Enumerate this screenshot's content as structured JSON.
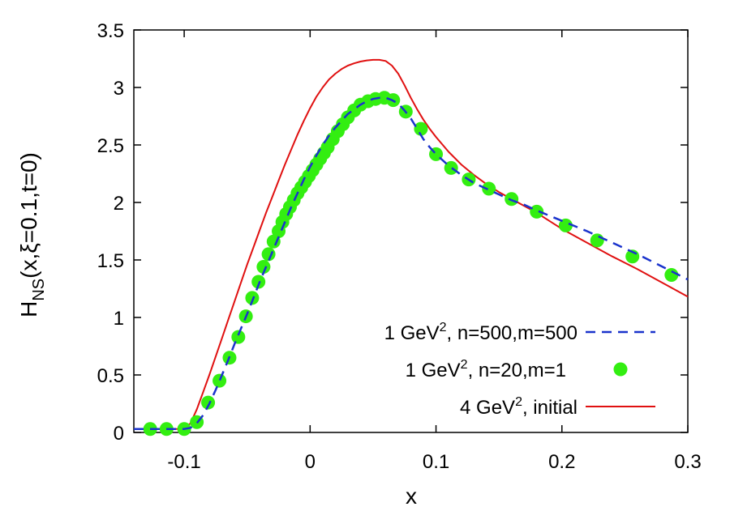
{
  "chart_data": {
    "type": "line",
    "xlabel": "x",
    "ylabel": {
      "base": "H",
      "sub": "NS",
      "rest": "(x,ξ=0.1,t=0)"
    },
    "xlim": [
      -0.14,
      0.3
    ],
    "ylim": [
      0,
      3.5
    ],
    "x_ticks": [
      -0.1,
      0,
      0.1,
      0.2,
      0.3
    ],
    "x_tick_labels": [
      "-0.1",
      "0",
      "0.1",
      "0.2",
      "0.3"
    ],
    "y_ticks": [
      0,
      0.5,
      1,
      1.5,
      2,
      2.5,
      3,
      3.5
    ],
    "y_tick_labels": [
      "0",
      "0.5",
      "1",
      "1.5",
      "2",
      "2.5",
      "3",
      "3.5"
    ],
    "grid": false,
    "legend_position": "bottom-right",
    "series": [
      {
        "name": "1 GeV, n=500,m=500",
        "legend": {
          "pre": "1 GeV",
          "sup": "2",
          "post": ", n=500,m=500"
        },
        "style": "dashed",
        "color": "#1a33cc",
        "x": [
          -0.14,
          -0.1,
          -0.095,
          -0.09,
          -0.085,
          -0.08,
          -0.075,
          -0.07,
          -0.065,
          -0.06,
          -0.055,
          -0.05,
          -0.045,
          -0.04,
          -0.035,
          -0.03,
          -0.025,
          -0.02,
          -0.015,
          -0.01,
          -0.005,
          0,
          0.005,
          0.01,
          0.015,
          0.02,
          0.025,
          0.03,
          0.035,
          0.04,
          0.045,
          0.05,
          0.055,
          0.06,
          0.065,
          0.07,
          0.075,
          0.08,
          0.085,
          0.09,
          0.095,
          0.1,
          0.11,
          0.12,
          0.13,
          0.14,
          0.15,
          0.16,
          0.17,
          0.18,
          0.2,
          0.22,
          0.24,
          0.26,
          0.28,
          0.3
        ],
        "y": [
          0.03,
          0.03,
          0.04,
          0.08,
          0.15,
          0.25,
          0.37,
          0.5,
          0.63,
          0.77,
          0.9,
          1.03,
          1.17,
          1.31,
          1.44,
          1.57,
          1.7,
          1.83,
          1.96,
          2.08,
          2.2,
          2.31,
          2.41,
          2.5,
          2.58,
          2.65,
          2.71,
          2.77,
          2.81,
          2.85,
          2.88,
          2.9,
          2.91,
          2.91,
          2.89,
          2.86,
          2.8,
          2.73,
          2.64,
          2.55,
          2.48,
          2.42,
          2.32,
          2.24,
          2.17,
          2.12,
          2.07,
          2.02,
          1.98,
          1.93,
          1.84,
          1.75,
          1.65,
          1.55,
          1.44,
          1.33
        ]
      },
      {
        "name": "1 GeV, n=20,m=1",
        "legend": {
          "pre": "1 GeV",
          "sup": "2",
          "post": ", n=20,m=1"
        },
        "style": "points",
        "color": "#33ee11",
        "x": [
          -0.127,
          -0.114,
          -0.1,
          -0.09,
          -0.081,
          -0.072,
          -0.064,
          -0.057,
          -0.051,
          -0.046,
          -0.041,
          -0.037,
          -0.033,
          -0.029,
          -0.025,
          -0.022,
          -0.019,
          -0.016,
          -0.013,
          -0.01,
          -0.007,
          -0.004,
          -0.001,
          0.002,
          0.005,
          0.008,
          0.011,
          0.014,
          0.018,
          0.022,
          0.026,
          0.03,
          0.035,
          0.04,
          0.046,
          0.052,
          0.059,
          0.066,
          0.076,
          0.088,
          0.1,
          0.112,
          0.126,
          0.142,
          0.16,
          0.18,
          0.203,
          0.228,
          0.256,
          0.287
        ],
        "y": [
          0.03,
          0.03,
          0.03,
          0.09,
          0.26,
          0.45,
          0.65,
          0.83,
          1.01,
          1.17,
          1.31,
          1.44,
          1.55,
          1.66,
          1.75,
          1.83,
          1.9,
          1.96,
          2.02,
          2.08,
          2.13,
          2.18,
          2.23,
          2.28,
          2.33,
          2.38,
          2.43,
          2.48,
          2.55,
          2.62,
          2.68,
          2.74,
          2.8,
          2.85,
          2.88,
          2.9,
          2.91,
          2.89,
          2.79,
          2.64,
          2.42,
          2.3,
          2.2,
          2.12,
          2.03,
          1.92,
          1.8,
          1.67,
          1.53,
          1.37
        ]
      },
      {
        "name": "4 GeV, initial",
        "legend": {
          "pre": "4 GeV",
          "sup": "2",
          "post": ", initial"
        },
        "style": "solid",
        "color": "#e01010",
        "x": [
          -0.14,
          -0.1,
          -0.095,
          -0.09,
          -0.085,
          -0.08,
          -0.075,
          -0.07,
          -0.065,
          -0.06,
          -0.055,
          -0.05,
          -0.045,
          -0.04,
          -0.035,
          -0.03,
          -0.025,
          -0.02,
          -0.015,
          -0.01,
          -0.005,
          0,
          0.005,
          0.01,
          0.015,
          0.02,
          0.025,
          0.03,
          0.035,
          0.04,
          0.045,
          0.05,
          0.055,
          0.06,
          0.065,
          0.07,
          0.075,
          0.08,
          0.085,
          0.09,
          0.095,
          0.1,
          0.11,
          0.12,
          0.13,
          0.14,
          0.15,
          0.16,
          0.18,
          0.2,
          0.22,
          0.24,
          0.26,
          0.28,
          0.3
        ],
        "y": [
          0.03,
          0.03,
          0.08,
          0.2,
          0.35,
          0.5,
          0.66,
          0.82,
          0.98,
          1.14,
          1.3,
          1.46,
          1.61,
          1.76,
          1.91,
          2.05,
          2.19,
          2.33,
          2.46,
          2.59,
          2.71,
          2.82,
          2.92,
          3.0,
          3.07,
          3.12,
          3.16,
          3.19,
          3.21,
          3.225,
          3.235,
          3.24,
          3.24,
          3.23,
          3.19,
          3.12,
          3.02,
          2.91,
          2.81,
          2.72,
          2.64,
          2.57,
          2.44,
          2.33,
          2.24,
          2.16,
          2.09,
          2.03,
          1.91,
          1.77,
          1.65,
          1.53,
          1.42,
          1.3,
          1.18
        ]
      }
    ]
  }
}
